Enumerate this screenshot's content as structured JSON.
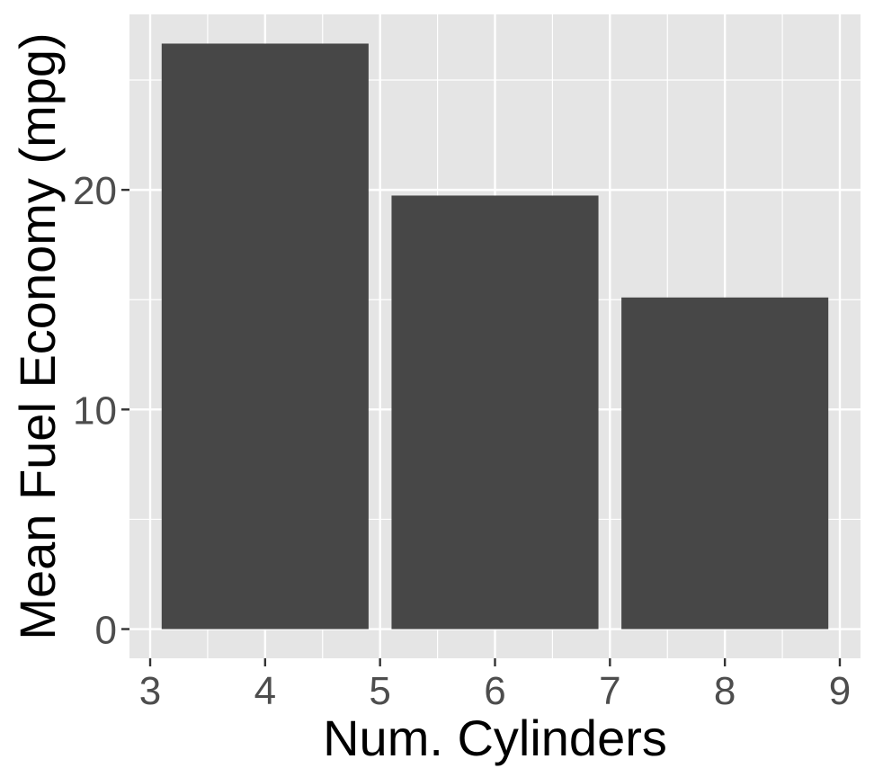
{
  "chart_data": {
    "type": "bar",
    "title": "",
    "xlabel": "Num. Cylinders",
    "ylabel": "Mean Fuel Economy (mpg)",
    "x": [
      4,
      6,
      8
    ],
    "values": [
      26.66,
      19.74,
      15.1
    ],
    "bar_width": 1.8,
    "xlim": [
      2.82,
      9.18
    ],
    "ylim": [
      -1.33,
      27.99
    ],
    "x_ticks": [
      3,
      4,
      5,
      6,
      7,
      8,
      9
    ],
    "y_ticks": [
      0,
      10,
      20
    ],
    "x_minor": [
      3.5,
      4.5,
      5.5,
      6.5,
      7.5,
      8.5
    ],
    "y_minor": [
      5,
      15,
      25
    ],
    "grid": true,
    "legend": "none",
    "colors": {
      "panel": "#e5e5e5",
      "grid": "#ffffff",
      "bar": "#474747",
      "tick": "#333333",
      "tick_text": "#4d4d4d",
      "title_text": "#000000"
    }
  }
}
